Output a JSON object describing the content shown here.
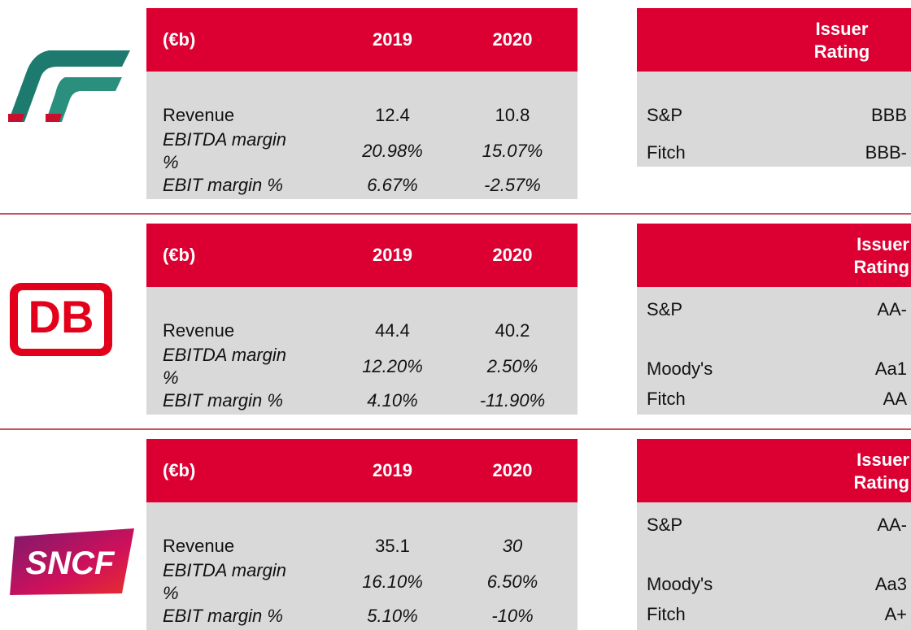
{
  "sections": [
    {
      "financials": {
        "header": [
          "(€b)",
          "2019",
          "2020"
        ],
        "rows": [
          [
            "Revenue",
            "12.4",
            "10.8"
          ],
          [
            "EBITDA margin %",
            "20.98%",
            "15.07%"
          ],
          [
            "EBIT margin %",
            "6.67%",
            "-2.57%"
          ]
        ]
      },
      "ratings": {
        "header": "Issuer Rating",
        "rows": [
          [
            "S&P",
            "BBB"
          ],
          [
            "Fitch",
            "BBB-"
          ]
        ]
      }
    },
    {
      "logo": "DB",
      "financials": {
        "header": [
          "(€b)",
          "2019",
          "2020"
        ],
        "rows": [
          [
            "Revenue",
            "44.4",
            "40.2"
          ],
          [
            "EBITDA margin %",
            "12.20%",
            "2.50%"
          ],
          [
            "EBIT margin %",
            "4.10%",
            "-11.90%"
          ]
        ]
      },
      "ratings": {
        "header": "Issuer Rating",
        "rows": [
          [
            "S&P",
            "AA-"
          ],
          [
            "Moody's",
            "Aa1"
          ],
          [
            "Fitch",
            "AA"
          ]
        ]
      }
    },
    {
      "logo": "SNCF",
      "financials": {
        "header": [
          "(€b)",
          "2019",
          "2020"
        ],
        "rows": [
          [
            "Revenue",
            "35.1",
            "30"
          ],
          [
            "EBITDA margin %",
            "16.10%",
            "6.50%"
          ],
          [
            "EBIT margin %",
            "5.10%",
            "-10%"
          ]
        ]
      },
      "ratings": {
        "header": "Issuer Rating",
        "rows": [
          [
            "S&P",
            "AA-"
          ],
          [
            "Moody's",
            "Aa3"
          ],
          [
            "Fitch",
            "A+"
          ]
        ]
      }
    }
  ]
}
